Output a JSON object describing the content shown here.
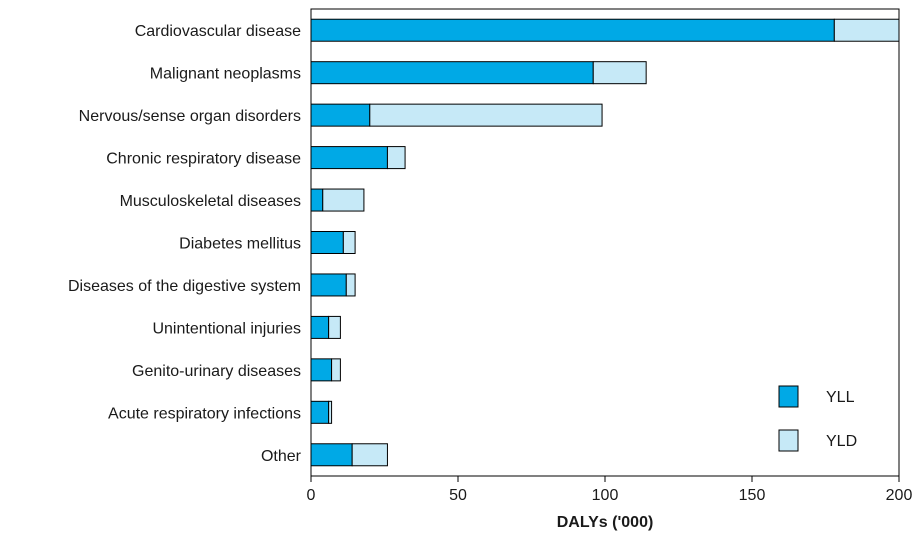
{
  "chart_data": {
    "type": "bar",
    "orientation": "horizontal",
    "stacked": true,
    "categories": [
      "Cardiovascular disease",
      "Malignant neoplasms",
      "Nervous/sense organ disorders",
      "Chronic respiratory disease",
      "Musculoskeletal diseases",
      "Diabetes mellitus",
      "Diseases of the digestive system",
      "Unintentional injuries",
      "Genito-urinary diseases",
      "Acute respiratory infections",
      "Other"
    ],
    "series": [
      {
        "name": "YLL",
        "color": "#00a9e6",
        "values": [
          178,
          96,
          20,
          26,
          4,
          11,
          12,
          6,
          7,
          6,
          14
        ]
      },
      {
        "name": "YLD",
        "color": "#c6e9f7",
        "values": [
          22,
          18,
          79,
          6,
          14,
          4,
          3,
          4,
          3,
          1,
          12
        ]
      }
    ],
    "xlabel": "DALYs ('000)",
    "ylabel": "",
    "title": "",
    "xlim": [
      0,
      200
    ],
    "xticks": [
      0,
      50,
      100,
      150,
      200
    ],
    "grid": false,
    "legend_position": "bottom-right"
  }
}
